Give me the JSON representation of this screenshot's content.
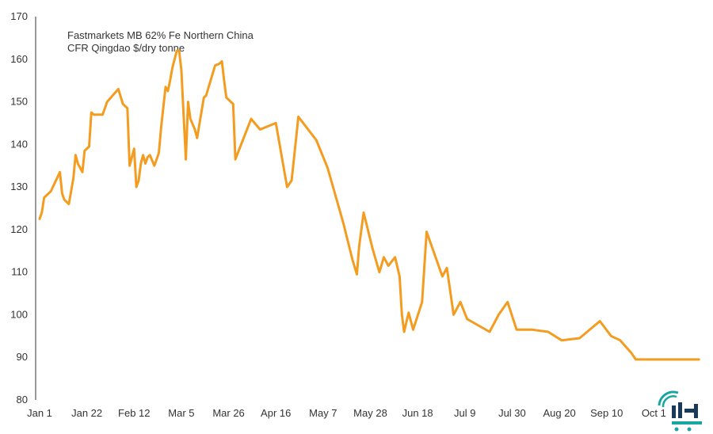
{
  "chart_data": {
    "type": "line",
    "title": "Fastmarkets MB 62% Fe Northern China",
    "subtitle": "CFR Qingdao $/dry tonne",
    "xlabel": "",
    "ylabel": "",
    "ylim": [
      80,
      170
    ],
    "yticks": [
      80,
      90,
      100,
      110,
      120,
      130,
      140,
      150,
      160,
      170
    ],
    "xtick_labels": [
      "Jan 1",
      "Jan 22",
      "Feb 12",
      "Mar 5",
      "Mar 26",
      "Apr 16",
      "May 7",
      "May 28",
      "Jun 18",
      "Jul 9",
      "Jul 30",
      "Aug 20",
      "Sep 10",
      "Oct 1"
    ],
    "xlim_days": [
      0,
      294
    ],
    "line_color": "#f39c1f",
    "grid": false,
    "series": [
      {
        "name": "",
        "x_day": [
          0,
          1,
          2,
          3,
          5,
          9,
          10,
          11,
          13,
          15,
          16,
          17,
          19,
          20,
          22,
          23,
          24,
          28,
          29,
          30,
          35,
          37,
          38,
          39,
          40,
          42,
          43,
          44,
          45,
          46,
          47,
          48,
          49,
          51,
          52,
          53,
          54,
          56,
          57,
          58,
          59,
          61,
          62,
          63,
          65,
          66,
          67,
          69,
          70,
          73,
          74,
          78,
          80,
          81,
          82,
          83,
          84,
          85,
          86,
          87,
          94,
          98,
          105,
          110,
          112,
          114,
          115,
          123,
          128,
          135,
          139,
          141,
          142,
          144,
          148,
          151,
          153,
          155,
          158,
          160,
          161,
          162,
          164,
          166,
          170,
          172,
          175,
          179,
          181,
          184,
          187,
          190,
          200,
          204,
          208,
          212,
          219,
          226,
          232,
          240,
          249,
          254,
          258,
          263,
          265,
          267,
          269,
          273,
          276,
          279,
          287,
          289,
          291,
          293
        ],
        "values": [
          122.5,
          124,
          127.5,
          128,
          129,
          133.5,
          128.5,
          127,
          126,
          132,
          137.5,
          135.5,
          133.5,
          138.5,
          139.5,
          147.5,
          147,
          147,
          148.5,
          150,
          153,
          149.5,
          149,
          148.5,
          135,
          139,
          130,
          131.5,
          135.5,
          137.5,
          135.5,
          137,
          137.5,
          135,
          136.5,
          138,
          144,
          153.5,
          152.5,
          155,
          158,
          162,
          162,
          157.5,
          136.5,
          150,
          146,
          143.5,
          141.5,
          151,
          151.5,
          158.5,
          159,
          159.5,
          155,
          151,
          150.5,
          150,
          149.5,
          136.5,
          146,
          143.5,
          145,
          130,
          131.5,
          141.5,
          146.5,
          141,
          134.5,
          121.5,
          113,
          109.5,
          116,
          124,
          115.5,
          110,
          113.5,
          111.5,
          113.5,
          109,
          100,
          96,
          100.5,
          96.5,
          103,
          119.5,
          115,
          109,
          111,
          100,
          103,
          99,
          96,
          100,
          103,
          96.5,
          96.5,
          96,
          94,
          94.5,
          98.5,
          95,
          94,
          91,
          89.5,
          89.5,
          89.5,
          89.5,
          89.5,
          89.5,
          89.5,
          89.5,
          89.5,
          89.5
        ]
      }
    ]
  }
}
